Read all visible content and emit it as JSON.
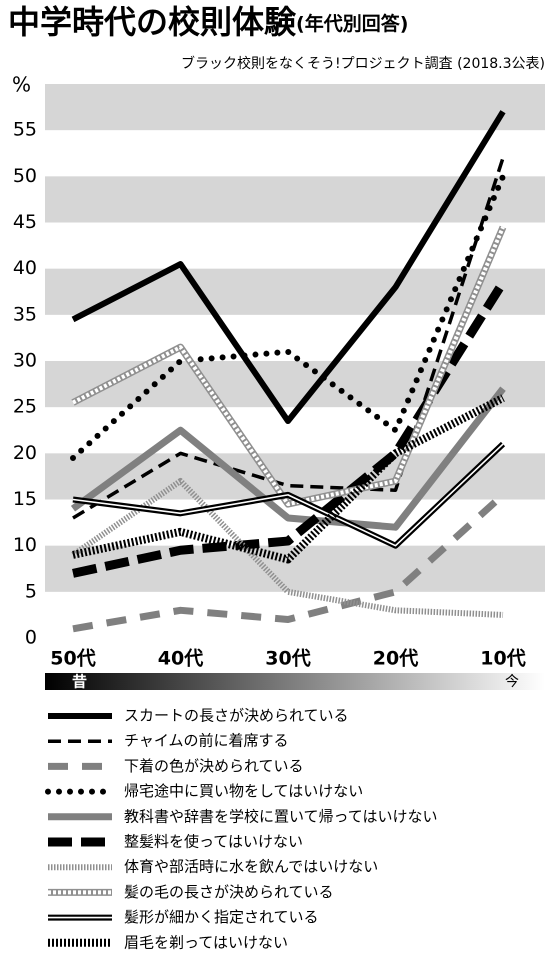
{
  "chart_data": {
    "type": "line",
    "title": "中学時代の校則体験",
    "title_note": "(年代別回答)",
    "subtitle": "ブラック校則をなくそう!プロジェクト調査 (2018.3公表)",
    "y_label": "%",
    "categories": [
      "50代",
      "40代",
      "30代",
      "20代",
      "10代"
    ],
    "annotations": [
      "昔",
      "今"
    ],
    "ylim": [
      0,
      60
    ],
    "yticks": [
      0,
      5,
      10,
      15,
      20,
      25,
      30,
      35,
      40,
      45,
      50,
      55
    ],
    "bands": true,
    "series": [
      {
        "name": "スカートの長さが決められている",
        "color": "#000000",
        "style": "solid",
        "values": [
          34.5,
          40.5,
          23.5,
          38,
          57
        ]
      },
      {
        "name": "チャイムの前に着席する",
        "color": "#000000",
        "style": "dashed",
        "values": [
          13,
          20,
          16.5,
          16,
          52
        ]
      },
      {
        "name": "下着の色が決められている",
        "color": "#808080",
        "style": "gray-dashed",
        "values": [
          1,
          3,
          2,
          5,
          15.5
        ]
      },
      {
        "name": "帰宅途中に買い物をしてはいけない",
        "color": "#000000",
        "style": "dotted",
        "values": [
          19.5,
          30,
          31,
          22.5,
          50
        ]
      },
      {
        "name": "教科書や辞書を学校に置いて帰ってはいけない",
        "color": "#808080",
        "style": "thick",
        "values": [
          14,
          22.5,
          13,
          12,
          27
        ]
      },
      {
        "name": "整髪料を使ってはいけない",
        "color": "#000000",
        "style": "long-dashed",
        "values": [
          7,
          9.5,
          10.5,
          20,
          38.5
        ]
      },
      {
        "name": "体育や部活時に水を飲んではいけない",
        "color": "#909090",
        "style": "hatched",
        "values": [
          9,
          17,
          5,
          3,
          2.5
        ]
      },
      {
        "name": "髪の毛の長さが決められている",
        "color": "#909090",
        "style": "diamond",
        "values": [
          25.5,
          31.5,
          14.5,
          17,
          44.5
        ]
      },
      {
        "name": "髪形が細かく指定されている",
        "color": "#000000",
        "style": "double",
        "values": [
          15,
          13.5,
          15.5,
          10,
          21
        ]
      },
      {
        "name": "眉毛を剃ってはいけない",
        "color": "#000000",
        "style": "striped",
        "values": [
          9,
          11.5,
          8.5,
          20,
          26
        ]
      }
    ]
  }
}
